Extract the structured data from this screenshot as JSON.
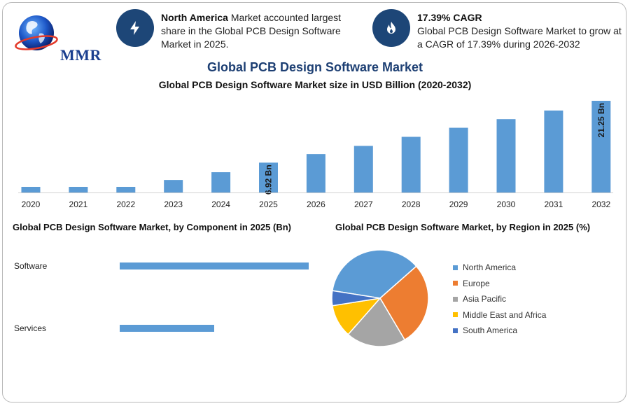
{
  "logo": {
    "text": "MMR"
  },
  "info_left": {
    "bold": "North America",
    "text": " Market accounted largest share in the Global PCB Design Software Market in 2025."
  },
  "info_right": {
    "bold": "17.39% CAGR",
    "text": "Global PCB Design Software Market to grow at a CAGR of 17.39% during 2026-2032"
  },
  "colors": {
    "bar": "#5b9bd5",
    "dark_blue": "#1d4677",
    "title": "#1d3f73"
  },
  "chart_data": [
    {
      "type": "bar",
      "title": "Global PCB Design Software Market",
      "subtitle": "Global PCB Design Software Market size in USD Billion (2020-2032)",
      "categories": [
        "2020",
        "2021",
        "2022",
        "2023",
        "2024",
        "2025",
        "2026",
        "2027",
        "2028",
        "2029",
        "2030",
        "2031",
        "2032"
      ],
      "values": [
        1.3,
        1.3,
        1.3,
        2.9,
        4.7,
        6.92,
        8.9,
        10.8,
        12.9,
        15.0,
        17.0,
        19.0,
        21.25
      ],
      "data_labels": {
        "5": "6.92 Bn",
        "12": "21.25 Bn"
      },
      "ylim": [
        0,
        22
      ],
      "grid": false
    },
    {
      "type": "bar",
      "orientation": "horizontal",
      "title": "Global PCB Design Software Market, by Component in 2025 (Bn)",
      "categories": [
        "Software",
        "Services"
      ],
      "values": [
        4.4,
        2.2
      ],
      "xlim": [
        0,
        4.4
      ],
      "grid": false
    },
    {
      "type": "pie",
      "title": "Global PCB Design Software Market, by Region in 2025 (%)",
      "labels": [
        "North America",
        "Europe",
        "Asia Pacific",
        "Middle East and Africa",
        "South America"
      ],
      "values": [
        36,
        28,
        20,
        11,
        5
      ],
      "colors": [
        "#5b9bd5",
        "#ed7d31",
        "#a5a5a5",
        "#ffc000",
        "#4472c4"
      ],
      "legend": "right"
    }
  ]
}
